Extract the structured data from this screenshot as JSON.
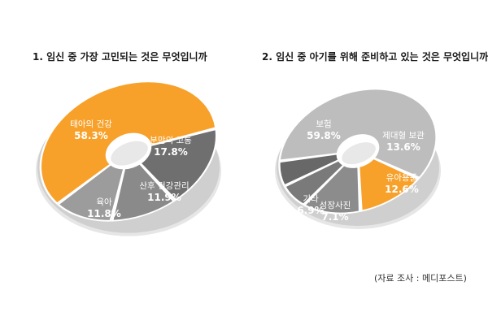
{
  "chart_data": [
    {
      "type": "pie",
      "title": "1. 임신 중 가장 고민되는 것은 무엇입니까",
      "unit": "%",
      "slices": [
        {
          "label": "태아의 건강",
          "value": 58.3,
          "color": "#f7a12b"
        },
        {
          "label": "분만의 고통",
          "value": 17.8,
          "color": "#6f6f6f"
        },
        {
          "label": "산후 건강관리",
          "value": 11.9,
          "color": "#8a8a8a"
        },
        {
          "label": "육아",
          "value": 11.8,
          "color": "#9c9c9c"
        }
      ]
    },
    {
      "type": "pie",
      "title": "2. 임신 중 아기를 위해 준비하고 있는 것은 무엇입니까",
      "unit": "%",
      "slices": [
        {
          "label": "보험",
          "value": 59.8,
          "color": "#bdbdbd"
        },
        {
          "label": "제대혈 보관",
          "value": 13.6,
          "color": "#f7a12b"
        },
        {
          "label": "유아용품",
          "value": 12.6,
          "color": "#8c8c8c"
        },
        {
          "label": "성장사진",
          "value": 7.1,
          "color": "#7a7a7a"
        },
        {
          "label": "기타",
          "value": 6.9,
          "color": "#686868"
        }
      ]
    }
  ],
  "source": "(자료 조사 : 메디포스트)"
}
